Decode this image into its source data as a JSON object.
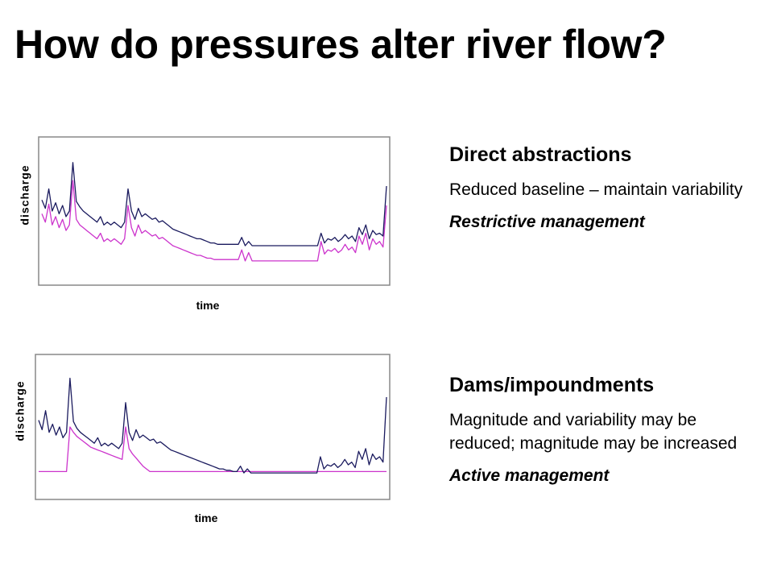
{
  "slide": {
    "title": "How do pressures alter river flow?"
  },
  "sections": [
    {
      "heading": "Direct abstractions",
      "description": "Reduced baseline – maintain variability",
      "management": "Restrictive management"
    },
    {
      "heading": "Dams/impoundments",
      "description": "Magnitude and variability may be reduced; magnitude may be increased",
      "management": "Active management"
    }
  ],
  "colors": {
    "natural_flow": "#1a1a5e",
    "altered_flow": "#cc33cc",
    "frame": "#888888"
  },
  "chart_data": [
    {
      "type": "line",
      "xlabel": "time",
      "ylabel": "discharge",
      "ylim": [
        0,
        1
      ],
      "x": [
        0,
        1,
        2,
        3,
        4,
        5,
        6,
        7,
        8,
        9,
        10,
        11,
        12,
        13,
        14,
        15,
        16,
        17,
        18,
        19,
        20,
        21,
        22,
        23,
        24,
        25,
        26,
        27,
        28,
        29,
        30,
        31,
        32,
        33,
        34,
        35,
        36,
        37,
        38,
        39,
        40,
        41,
        42,
        43,
        44,
        45,
        46,
        47,
        48,
        49,
        50,
        51,
        52,
        53,
        54,
        55,
        56,
        57,
        58,
        59,
        60,
        61,
        62,
        63,
        64,
        65,
        66,
        67,
        68,
        69,
        70,
        71,
        72,
        73,
        74,
        75,
        76,
        77,
        78,
        79,
        80,
        81,
        82,
        83,
        84,
        85,
        86,
        87,
        88,
        89,
        90,
        91,
        92,
        93,
        94,
        95,
        96,
        97,
        98,
        99,
        100
      ],
      "series": [
        {
          "values": [
            0.58,
            0.52,
            0.66,
            0.5,
            0.56,
            0.48,
            0.54,
            0.46,
            0.5,
            0.85,
            0.57,
            0.53,
            0.5,
            0.48,
            0.46,
            0.44,
            0.42,
            0.46,
            0.4,
            0.42,
            0.4,
            0.42,
            0.4,
            0.38,
            0.42,
            0.66,
            0.5,
            0.44,
            0.52,
            0.46,
            0.48,
            0.46,
            0.44,
            0.45,
            0.42,
            0.43,
            0.41,
            0.39,
            0.37,
            0.36,
            0.35,
            0.34,
            0.33,
            0.32,
            0.31,
            0.3,
            0.3,
            0.29,
            0.28,
            0.27,
            0.27,
            0.26,
            0.26,
            0.26,
            0.26,
            0.26,
            0.26,
            0.26,
            0.31,
            0.25,
            0.28,
            0.25,
            0.25,
            0.25,
            0.25,
            0.25,
            0.25,
            0.25,
            0.25,
            0.25,
            0.25,
            0.25,
            0.25,
            0.25,
            0.25,
            0.25,
            0.25,
            0.25,
            0.25,
            0.25,
            0.25,
            0.34,
            0.27,
            0.3,
            0.29,
            0.31,
            0.28,
            0.3,
            0.33,
            0.3,
            0.32,
            0.28,
            0.38,
            0.33,
            0.4,
            0.3,
            0.36,
            0.33,
            0.34,
            0.32,
            0.68
          ]
        },
        {
          "values": [
            0.48,
            0.42,
            0.55,
            0.4,
            0.46,
            0.38,
            0.44,
            0.36,
            0.4,
            0.72,
            0.44,
            0.4,
            0.38,
            0.36,
            0.34,
            0.32,
            0.3,
            0.34,
            0.28,
            0.3,
            0.28,
            0.3,
            0.28,
            0.26,
            0.3,
            0.54,
            0.38,
            0.32,
            0.4,
            0.34,
            0.36,
            0.34,
            0.32,
            0.33,
            0.3,
            0.31,
            0.29,
            0.27,
            0.25,
            0.24,
            0.23,
            0.22,
            0.21,
            0.2,
            0.19,
            0.18,
            0.18,
            0.17,
            0.16,
            0.16,
            0.15,
            0.15,
            0.15,
            0.15,
            0.15,
            0.15,
            0.15,
            0.15,
            0.22,
            0.14,
            0.2,
            0.14,
            0.14,
            0.14,
            0.14,
            0.14,
            0.14,
            0.14,
            0.14,
            0.14,
            0.14,
            0.14,
            0.14,
            0.14,
            0.14,
            0.14,
            0.14,
            0.14,
            0.14,
            0.14,
            0.14,
            0.28,
            0.19,
            0.22,
            0.21,
            0.23,
            0.2,
            0.22,
            0.26,
            0.22,
            0.24,
            0.2,
            0.32,
            0.26,
            0.34,
            0.22,
            0.3,
            0.26,
            0.28,
            0.24,
            0.54
          ]
        }
      ]
    },
    {
      "type": "line",
      "xlabel": "time",
      "ylabel": "discharge",
      "ylim": [
        0,
        1
      ],
      "x": [
        0,
        1,
        2,
        3,
        4,
        5,
        6,
        7,
        8,
        9,
        10,
        11,
        12,
        13,
        14,
        15,
        16,
        17,
        18,
        19,
        20,
        21,
        22,
        23,
        24,
        25,
        26,
        27,
        28,
        29,
        30,
        31,
        32,
        33,
        34,
        35,
        36,
        37,
        38,
        39,
        40,
        41,
        42,
        43,
        44,
        45,
        46,
        47,
        48,
        49,
        50,
        51,
        52,
        53,
        54,
        55,
        56,
        57,
        58,
        59,
        60,
        61,
        62,
        63,
        64,
        65,
        66,
        67,
        68,
        69,
        70,
        71,
        72,
        73,
        74,
        75,
        76,
        77,
        78,
        79,
        80,
        81,
        82,
        83,
        84,
        85,
        86,
        87,
        88,
        89,
        90,
        91,
        92,
        93,
        94,
        95,
        96,
        97,
        98,
        99,
        100
      ],
      "series": [
        {
          "values": [
            0.55,
            0.48,
            0.62,
            0.46,
            0.52,
            0.44,
            0.5,
            0.42,
            0.46,
            0.86,
            0.54,
            0.49,
            0.46,
            0.44,
            0.42,
            0.4,
            0.38,
            0.42,
            0.36,
            0.38,
            0.36,
            0.38,
            0.36,
            0.34,
            0.38,
            0.68,
            0.46,
            0.4,
            0.48,
            0.42,
            0.44,
            0.42,
            0.4,
            0.41,
            0.38,
            0.39,
            0.37,
            0.35,
            0.33,
            0.32,
            0.31,
            0.3,
            0.29,
            0.28,
            0.27,
            0.26,
            0.25,
            0.24,
            0.23,
            0.22,
            0.21,
            0.2,
            0.19,
            0.19,
            0.18,
            0.18,
            0.17,
            0.17,
            0.21,
            0.16,
            0.19,
            0.16,
            0.16,
            0.16,
            0.16,
            0.16,
            0.16,
            0.16,
            0.16,
            0.16,
            0.16,
            0.16,
            0.16,
            0.16,
            0.16,
            0.16,
            0.16,
            0.16,
            0.16,
            0.16,
            0.16,
            0.28,
            0.19,
            0.22,
            0.21,
            0.23,
            0.2,
            0.22,
            0.26,
            0.22,
            0.24,
            0.2,
            0.32,
            0.26,
            0.34,
            0.22,
            0.3,
            0.26,
            0.28,
            0.24,
            0.72
          ]
        },
        {
          "values": [
            0.17,
            0.17,
            0.17,
            0.17,
            0.17,
            0.17,
            0.17,
            0.17,
            0.17,
            0.5,
            0.46,
            0.43,
            0.41,
            0.39,
            0.37,
            0.35,
            0.34,
            0.33,
            0.32,
            0.31,
            0.3,
            0.29,
            0.28,
            0.27,
            0.26,
            0.5,
            0.34,
            0.3,
            0.27,
            0.24,
            0.21,
            0.19,
            0.17,
            0.17,
            0.17,
            0.17,
            0.17,
            0.17,
            0.17,
            0.17,
            0.17,
            0.17,
            0.17,
            0.17,
            0.17,
            0.17,
            0.17,
            0.17,
            0.17,
            0.17,
            0.17,
            0.17,
            0.17,
            0.17,
            0.17,
            0.17,
            0.17,
            0.17,
            0.17,
            0.17,
            0.17,
            0.17,
            0.17,
            0.17,
            0.17,
            0.17,
            0.17,
            0.17,
            0.17,
            0.17,
            0.17,
            0.17,
            0.17,
            0.17,
            0.17,
            0.17,
            0.17,
            0.17,
            0.17,
            0.17,
            0.17,
            0.17,
            0.17,
            0.17,
            0.17,
            0.17,
            0.17,
            0.17,
            0.17,
            0.17,
            0.17,
            0.17,
            0.17,
            0.17,
            0.17,
            0.17,
            0.17,
            0.17,
            0.17,
            0.17,
            0.17
          ]
        }
      ]
    }
  ]
}
